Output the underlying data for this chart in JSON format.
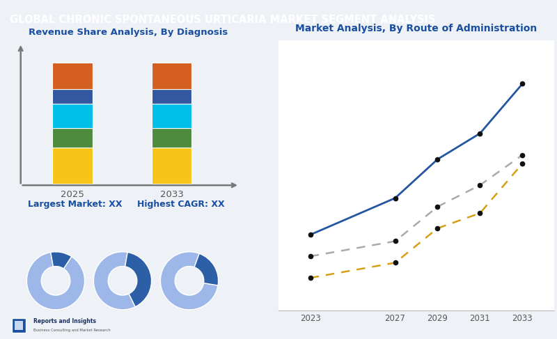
{
  "title": "GLOBAL CHRONIC SPONTANEOUS URTICARIA MARKET SEGMENT ANALYSIS",
  "title_bg": "#2d3f5e",
  "title_color": "#ffffff",
  "bar_title": "Revenue Share Analysis, By Diagnosis",
  "line_title": "Market Analysis, By Route of Administration",
  "bar_years": [
    "2025",
    "2033"
  ],
  "bar_colors": [
    "#f5c518",
    "#4e8b3f",
    "#00c0e8",
    "#3358a0",
    "#d45f20"
  ],
  "bar_segments": [
    0.3,
    0.16,
    0.2,
    0.12,
    0.22
  ],
  "largest_label": "Largest Market: XX",
  "cagr_label": "Highest CAGR: XX",
  "line_x": [
    2023,
    2027,
    2029,
    2031,
    2033
  ],
  "line1_y": [
    3.5,
    5.2,
    7.0,
    8.2,
    10.5
  ],
  "line2_y": [
    2.5,
    3.2,
    4.8,
    5.8,
    7.2
  ],
  "line3_y": [
    1.5,
    2.2,
    3.8,
    4.5,
    6.8
  ],
  "line1_color": "#2355a0",
  "line2_color": "#aaaaaa",
  "line3_color": "#d4a017",
  "donut1": [
    0.88,
    0.12
  ],
  "donut2": [
    0.6,
    0.4
  ],
  "donut3": [
    0.78,
    0.22
  ],
  "donut_light": "#9db8e8",
  "donut_dark": "#2d5fa6",
  "donut_mid_light": "#7ba0d4",
  "donut_mid": "#7baad4",
  "bg_color": "#eef2f7",
  "white": "#ffffff",
  "blue_text": "#1a4fa0",
  "axis_color": "#777777",
  "grid_color": "#d8dde8",
  "tick_color": "#555555"
}
